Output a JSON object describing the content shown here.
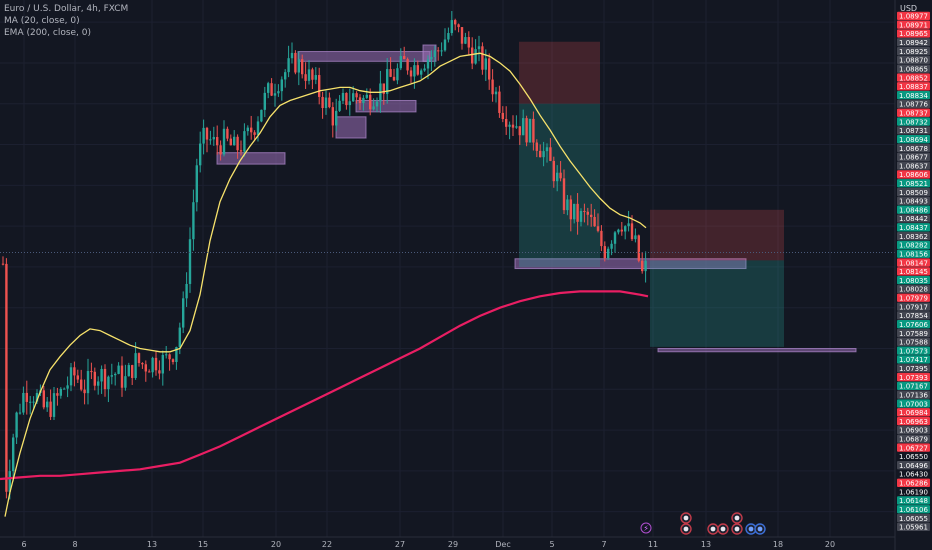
{
  "legend": {
    "symbol": "Euro / U.S. Dollar, 4h, FXCM",
    "ma": "MA (20, close, 0)",
    "ema": "EMA (200, close, 0)"
  },
  "currency": "USD",
  "colors": {
    "background": "#131722",
    "bull": "#26a69a",
    "bear": "#ef5350",
    "ma": "#f7e26b",
    "ema": "#e91e63",
    "zone": "#9c6fb8"
  },
  "chart_data": {
    "type": "candlestick",
    "ylim": [
      1.059,
      1.0905
    ],
    "x_ticks": [
      "6",
      "8",
      "13",
      "15",
      "20",
      "22",
      "27",
      "29",
      "Dec",
      "5",
      "7",
      "11",
      "13",
      "18",
      "20"
    ],
    "price_labels": [
      {
        "v": "1.08977",
        "c": "red"
      },
      {
        "v": "1.08971",
        "c": "red"
      },
      {
        "v": "1.08965",
        "c": "red"
      },
      {
        "v": "1.08942",
        "c": "grey"
      },
      {
        "v": "1.08925",
        "c": "grey"
      },
      {
        "v": "1.08870",
        "c": "grey"
      },
      {
        "v": "1.08865",
        "c": "grey"
      },
      {
        "v": "1.08852",
        "c": "red"
      },
      {
        "v": "1.08837",
        "c": "red"
      },
      {
        "v": "1.08834",
        "c": "green"
      },
      {
        "v": "1.08776",
        "c": "grey"
      },
      {
        "v": "1.08737",
        "c": "red"
      },
      {
        "v": "1.08732",
        "c": "green"
      },
      {
        "v": "1.08731",
        "c": "grey"
      },
      {
        "v": "1.08694",
        "c": "green"
      },
      {
        "v": "1.08678",
        "c": "grey"
      },
      {
        "v": "1.08677",
        "c": "grey"
      },
      {
        "v": "1.08637",
        "c": "grey"
      },
      {
        "v": "1.08606",
        "c": "red"
      },
      {
        "v": "1.08521",
        "c": "green"
      },
      {
        "v": "1.08509",
        "c": "grey"
      },
      {
        "v": "1.08493",
        "c": "grey"
      },
      {
        "v": "1.08486",
        "c": "green"
      },
      {
        "v": "1.08442",
        "c": "grey"
      },
      {
        "v": "1.08437",
        "c": "green"
      },
      {
        "v": "1.08362",
        "c": "grey"
      },
      {
        "v": "1.08282",
        "c": "green"
      },
      {
        "v": "1.08156",
        "c": "green"
      },
      {
        "v": "1.08147",
        "c": "red"
      },
      {
        "v": "1.08145",
        "c": "red"
      },
      {
        "v": "1.08035",
        "c": "green"
      },
      {
        "v": "1.08028",
        "c": "grey"
      },
      {
        "v": "1.07979",
        "c": "red"
      },
      {
        "v": "1.07917",
        "c": "grey"
      },
      {
        "v": "1.07854",
        "c": "grey"
      },
      {
        "v": "1.07606",
        "c": "green"
      },
      {
        "v": "1.07589",
        "c": "grey"
      },
      {
        "v": "1.07588",
        "c": "grey"
      },
      {
        "v": "1.07573",
        "c": "green"
      },
      {
        "v": "1.07417",
        "c": "green"
      },
      {
        "v": "1.07395",
        "c": "grey"
      },
      {
        "v": "1.07393",
        "c": "red"
      },
      {
        "v": "1.07167",
        "c": "green"
      },
      {
        "v": "1.07136",
        "c": "grey"
      },
      {
        "v": "1.07003",
        "c": "green"
      },
      {
        "v": "1.06984",
        "c": "red"
      },
      {
        "v": "1.06963",
        "c": "red"
      },
      {
        "v": "1.06903",
        "c": "grey"
      },
      {
        "v": "1.06879",
        "c": "grey"
      },
      {
        "v": "1.06727",
        "c": "red"
      },
      {
        "v": "1.06550",
        "c": "none"
      },
      {
        "v": "1.06496",
        "c": "grey"
      },
      {
        "v": "1.06430",
        "c": "none"
      },
      {
        "v": "1.06286",
        "c": "red"
      },
      {
        "v": "1.06190",
        "c": "none"
      },
      {
        "v": "1.06148",
        "c": "green"
      },
      {
        "v": "1.06106",
        "c": "green"
      },
      {
        "v": "1.06055",
        "c": "grey"
      },
      {
        "v": "1.05961",
        "c": "grey"
      }
    ],
    "zones": [
      {
        "x0": 217,
        "x1": 285,
        "y0": 1.082,
        "y1": 1.0813
      },
      {
        "x0": 298,
        "x1": 430,
        "y0": 1.0882,
        "y1": 1.0876
      },
      {
        "x0": 356,
        "x1": 416,
        "y0": 1.0852,
        "y1": 1.0845
      },
      {
        "x0": 336,
        "x1": 366,
        "y0": 1.0842,
        "y1": 1.0829
      },
      {
        "x0": 515,
        "x1": 746,
        "y0": 1.0755,
        "y1": 1.0749
      },
      {
        "x0": 658,
        "x1": 856,
        "y0": 1.07,
        "y1": 1.0698
      },
      {
        "x0": 423,
        "x1": 436,
        "y0": 1.0886,
        "y1": 1.0876
      }
    ],
    "positions": [
      {
        "x0": 519,
        "x1": 600,
        "entry": 1.085,
        "stop": 1.0888,
        "target": 1.075
      },
      {
        "x0": 650,
        "x1": 784,
        "entry": 1.0754,
        "stop": 1.0785,
        "target": 1.0701
      }
    ],
    "ma_line": [
      [
        5,
        1.0597
      ],
      [
        10,
        1.0612
      ],
      [
        20,
        1.0636
      ],
      [
        30,
        1.0657
      ],
      [
        40,
        1.0673
      ],
      [
        50,
        1.0687
      ],
      [
        60,
        1.0695
      ],
      [
        70,
        1.0702
      ],
      [
        80,
        1.0708
      ],
      [
        90,
        1.0712
      ],
      [
        100,
        1.0711
      ],
      [
        110,
        1.0708
      ],
      [
        120,
        1.0705
      ],
      [
        130,
        1.0702
      ],
      [
        140,
        1.07
      ],
      [
        150,
        1.0699
      ],
      [
        160,
        1.0698
      ],
      [
        170,
        1.0698
      ],
      [
        180,
        1.07
      ],
      [
        190,
        1.0711
      ],
      [
        200,
        1.0733
      ],
      [
        210,
        1.0766
      ],
      [
        220,
        1.079
      ],
      [
        230,
        1.0804
      ],
      [
        240,
        1.0815
      ],
      [
        250,
        1.0824
      ],
      [
        260,
        1.0832
      ],
      [
        270,
        1.0842
      ],
      [
        280,
        1.0849
      ],
      [
        290,
        1.0852
      ],
      [
        300,
        1.0854
      ],
      [
        310,
        1.0856
      ],
      [
        320,
        1.0858
      ],
      [
        330,
        1.0859
      ],
      [
        340,
        1.086
      ],
      [
        350,
        1.086
      ],
      [
        360,
        1.0858
      ],
      [
        370,
        1.0857
      ],
      [
        380,
        1.0857
      ],
      [
        390,
        1.0858
      ],
      [
        400,
        1.086
      ],
      [
        410,
        1.0862
      ],
      [
        420,
        1.0864
      ],
      [
        430,
        1.0868
      ],
      [
        440,
        1.0873
      ],
      [
        450,
        1.0876
      ],
      [
        460,
        1.0879
      ],
      [
        470,
        1.088
      ],
      [
        480,
        1.0881
      ],
      [
        490,
        1.0879
      ],
      [
        500,
        1.0875
      ],
      [
        510,
        1.087
      ],
      [
        520,
        1.0862
      ],
      [
        530,
        1.0853
      ],
      [
        540,
        1.0843
      ],
      [
        550,
        1.0834
      ],
      [
        560,
        1.0824
      ],
      [
        570,
        1.0815
      ],
      [
        580,
        1.0807
      ],
      [
        590,
        1.0799
      ],
      [
        600,
        1.0792
      ],
      [
        610,
        1.0786
      ],
      [
        620,
        1.0782
      ],
      [
        630,
        1.078
      ],
      [
        640,
        1.0777
      ],
      [
        646,
        1.0774
      ]
    ],
    "ema_line": [
      [
        0,
        1.062
      ],
      [
        20,
        1.0621
      ],
      [
        40,
        1.0622
      ],
      [
        60,
        1.0622
      ],
      [
        80,
        1.0623
      ],
      [
        100,
        1.0624
      ],
      [
        120,
        1.0625
      ],
      [
        140,
        1.0626
      ],
      [
        160,
        1.0628
      ],
      [
        180,
        1.063
      ],
      [
        200,
        1.0635
      ],
      [
        220,
        1.064
      ],
      [
        240,
        1.0646
      ],
      [
        260,
        1.0652
      ],
      [
        280,
        1.0658
      ],
      [
        300,
        1.0664
      ],
      [
        320,
        1.067
      ],
      [
        340,
        1.0676
      ],
      [
        360,
        1.0682
      ],
      [
        380,
        1.0688
      ],
      [
        400,
        1.0694
      ],
      [
        420,
        1.07
      ],
      [
        440,
        1.0707
      ],
      [
        460,
        1.0714
      ],
      [
        480,
        1.072
      ],
      [
        500,
        1.0725
      ],
      [
        520,
        1.0729
      ],
      [
        540,
        1.0732
      ],
      [
        560,
        1.0734
      ],
      [
        580,
        1.0735
      ],
      [
        600,
        1.0735
      ],
      [
        620,
        1.0735
      ],
      [
        640,
        1.0733
      ],
      [
        648,
        1.0732
      ]
    ],
    "candles_seed": [
      [
        5,
        1.061
      ],
      [
        15,
        1.0655
      ],
      [
        25,
        1.0675
      ],
      [
        35,
        1.0672
      ],
      [
        45,
        1.0662
      ],
      [
        55,
        1.0667
      ],
      [
        65,
        1.0677
      ],
      [
        75,
        1.0684
      ],
      [
        85,
        1.0676
      ],
      [
        95,
        1.0685
      ],
      [
        105,
        1.0683
      ],
      [
        115,
        1.0685
      ],
      [
        125,
        1.068
      ],
      [
        135,
        1.0692
      ],
      [
        145,
        1.069
      ],
      [
        155,
        1.0693
      ],
      [
        165,
        1.0692
      ],
      [
        175,
        1.07
      ],
      [
        183,
        1.0723
      ],
      [
        190,
        1.0767
      ],
      [
        197,
        1.0815
      ],
      [
        205,
        1.083
      ],
      [
        215,
        1.0825
      ],
      [
        225,
        1.0827
      ],
      [
        235,
        1.0822
      ],
      [
        245,
        1.0827
      ],
      [
        255,
        1.0838
      ],
      [
        262,
        1.085
      ],
      [
        270,
        1.0858
      ],
      [
        278,
        1.0865
      ],
      [
        286,
        1.087
      ],
      [
        295,
        1.0876
      ],
      [
        305,
        1.087
      ],
      [
        315,
        1.0861
      ],
      [
        325,
        1.0851
      ],
      [
        335,
        1.084
      ],
      [
        345,
        1.0853
      ],
      [
        355,
        1.0855
      ],
      [
        365,
        1.0852
      ],
      [
        375,
        1.0857
      ],
      [
        385,
        1.0862
      ],
      [
        395,
        1.0868
      ],
      [
        405,
        1.0875
      ],
      [
        415,
        1.0873
      ],
      [
        425,
        1.0878
      ],
      [
        435,
        1.088
      ],
      [
        445,
        1.089
      ],
      [
        452,
        1.0897
      ],
      [
        460,
        1.0892
      ],
      [
        468,
        1.0885
      ],
      [
        476,
        1.088
      ],
      [
        484,
        1.0874
      ],
      [
        492,
        1.0862
      ],
      [
        500,
        1.085
      ],
      [
        508,
        1.0842
      ],
      [
        516,
        1.0838
      ],
      [
        524,
        1.0835
      ],
      [
        532,
        1.0832
      ],
      [
        540,
        1.0824
      ],
      [
        548,
        1.0815
      ],
      [
        556,
        1.0806
      ],
      [
        564,
        1.079
      ],
      [
        572,
        1.0782
      ],
      [
        580,
        1.078
      ],
      [
        588,
        1.0781
      ],
      [
        596,
        1.077
      ],
      [
        604,
        1.076
      ],
      [
        612,
        1.077
      ],
      [
        620,
        1.078
      ],
      [
        628,
        1.0772
      ],
      [
        636,
        1.0762
      ],
      [
        642,
        1.0745
      ],
      [
        648,
        1.0752
      ]
    ],
    "event_markers": [
      {
        "x": 646,
        "y": 528,
        "kind": "bolt"
      },
      {
        "x": 686,
        "y": 518,
        "kind": "flag"
      },
      {
        "x": 686,
        "y": 529,
        "kind": "flag"
      },
      {
        "x": 713,
        "y": 529,
        "kind": "flag"
      },
      {
        "x": 723,
        "y": 529,
        "kind": "flag"
      },
      {
        "x": 737,
        "y": 518,
        "kind": "flag"
      },
      {
        "x": 737,
        "y": 529,
        "kind": "flag"
      },
      {
        "x": 751,
        "y": 529,
        "kind": "globe"
      },
      {
        "x": 760,
        "y": 529,
        "kind": "globe"
      }
    ]
  }
}
